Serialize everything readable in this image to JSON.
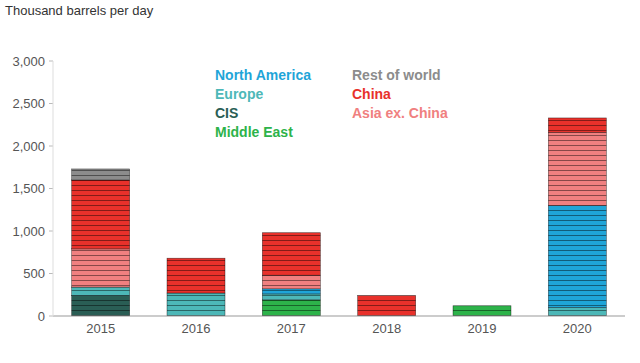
{
  "chart_data": {
    "type": "bar",
    "stacked": true,
    "grid": false,
    "y_label": "Thousand barrels per day",
    "categories": [
      "2015",
      "2016",
      "2017",
      "2018",
      "2019",
      "2020"
    ],
    "ylim": [
      0,
      3000
    ],
    "yticks": [
      0,
      500,
      {
        "value": 1000,
        "label": "1,000"
      },
      {
        "value": 1500,
        "label": "1,500"
      },
      {
        "value": 2000,
        "label": "2,000"
      },
      {
        "value": 2500,
        "label": "2,500"
      },
      {
        "value": 3000,
        "label": "3,000"
      }
    ],
    "series": [
      {
        "name": "Middle East",
        "color": "#2db34a",
        "values": [
          0,
          0,
          190,
          0,
          120,
          0
        ]
      },
      {
        "name": "CIS",
        "color": "#2a5e55",
        "values": [
          240,
          0,
          0,
          0,
          0,
          0
        ]
      },
      {
        "name": "Europe",
        "color": "#4db8b8",
        "values": [
          100,
          270,
          70,
          0,
          0,
          100
        ]
      },
      {
        "name": "North America",
        "color": "#1fa5d8",
        "values": [
          0,
          0,
          60,
          0,
          0,
          1200
        ]
      },
      {
        "name": "Asia ex. China",
        "color": "#f08080",
        "values": [
          450,
          0,
          160,
          0,
          0,
          860
        ]
      },
      {
        "name": "China",
        "color": "#e8312b",
        "values": [
          810,
          410,
          500,
          240,
          0,
          170
        ]
      },
      {
        "name": "Rest of world",
        "color": "#8c8c8c",
        "values": [
          130,
          0,
          0,
          0,
          0,
          0
        ]
      }
    ]
  }
}
